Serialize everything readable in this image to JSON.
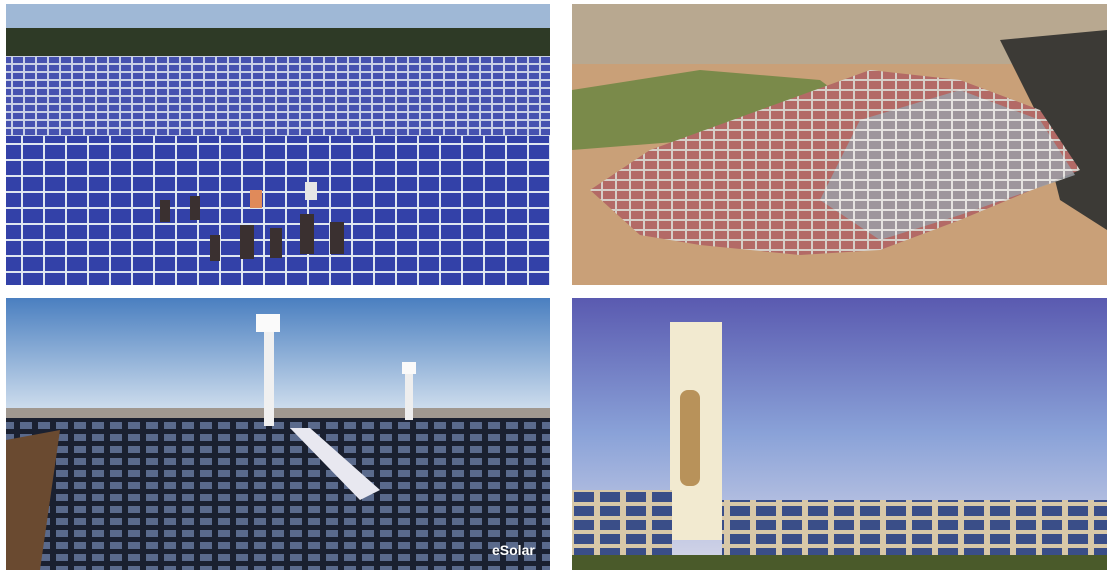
{
  "images": {
    "bottom_left": {
      "watermark": "eSolar"
    }
  }
}
